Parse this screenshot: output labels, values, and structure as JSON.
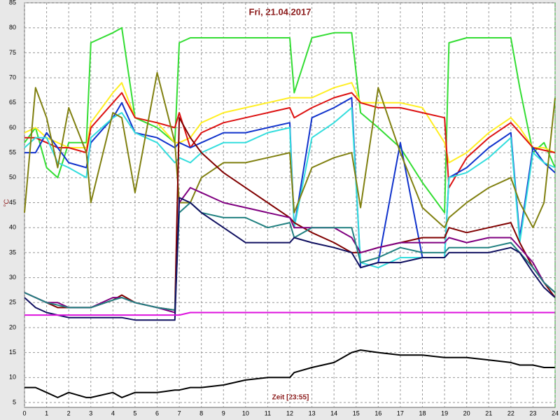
{
  "chart_data": {
    "type": "line",
    "title": "Fri, 21.04.2017",
    "x_label": "Zeit [23:55]",
    "y_label": "°C",
    "x": [
      0,
      0.5,
      1,
      1.5,
      2,
      2.8,
      3,
      4,
      4.4,
      5,
      6,
      6.8,
      7,
      7.5,
      8,
      9,
      10,
      11,
      12,
      12.2,
      13,
      14,
      14.8,
      15.2,
      16,
      17,
      18,
      19,
      19.2,
      20,
      21,
      22,
      22.4,
      23,
      23.5,
      24
    ],
    "series": [
      {
        "color": "#33dd33",
        "values": [
          57,
          60,
          52,
          50,
          57,
          57,
          77,
          79,
          80,
          62,
          60,
          57,
          77,
          78,
          78,
          78,
          78,
          78,
          78,
          67,
          78,
          79,
          79,
          63,
          60,
          56,
          49,
          43,
          77,
          78,
          78,
          78,
          68,
          55,
          57,
          52
        ]
      },
      {
        "color": "#ffee22",
        "values": [
          59,
          60,
          58,
          57,
          56,
          56,
          61,
          67,
          69,
          62,
          61,
          57,
          57,
          58,
          61,
          63,
          64,
          65,
          66,
          66,
          66,
          68,
          69,
          65,
          65,
          65,
          64,
          57,
          53,
          55,
          59,
          62,
          60,
          56,
          56,
          55
        ]
      },
      {
        "color": "#dd1111",
        "values": [
          58,
          58,
          57,
          56,
          56,
          55,
          60,
          65,
          67,
          62,
          61,
          60,
          63,
          56,
          59,
          61,
          62,
          63,
          64,
          62,
          64,
          66,
          67,
          65,
          64,
          64,
          63,
          62,
          48,
          54,
          58,
          61,
          59,
          56,
          55.5,
          55
        ]
      },
      {
        "color": "#1133cc",
        "values": [
          55,
          55,
          59,
          56,
          53,
          52,
          57,
          62,
          65,
          59,
          58,
          56,
          57,
          56,
          57,
          59,
          59,
          60,
          61,
          40,
          62,
          64,
          66,
          32,
          33,
          57,
          34,
          34,
          50,
          52,
          56,
          59,
          38,
          56,
          53,
          51
        ]
      },
      {
        "color": "#33dddd",
        "values": [
          56,
          58,
          58,
          53,
          52,
          50,
          58,
          62,
          63,
          59,
          57,
          53,
          54,
          53,
          55,
          57,
          57,
          59,
          60,
          40,
          58,
          61,
          64,
          33,
          32,
          34,
          34,
          34,
          50,
          51,
          54,
          58,
          37,
          55,
          53,
          52
        ]
      },
      {
        "color": "#808010",
        "values": [
          43,
          68,
          62,
          52,
          64,
          55,
          45,
          63,
          62,
          47,
          71,
          57,
          45,
          45,
          50,
          53,
          53,
          54,
          55,
          43,
          52,
          54,
          55,
          44,
          68,
          55,
          44,
          40,
          42,
          45,
          48,
          50,
          45,
          40,
          45,
          66
        ]
      },
      {
        "color": "#800000",
        "values": [
          27,
          26,
          25,
          24,
          24,
          24,
          24,
          25.5,
          26.5,
          25,
          24,
          23.5,
          62,
          58,
          55,
          51,
          48,
          45,
          42,
          41,
          39,
          37,
          35,
          35,
          36,
          37,
          38,
          38,
          40,
          39,
          40,
          41,
          37,
          32,
          29,
          26
        ]
      },
      {
        "color": "#800080",
        "values": [
          27,
          26,
          25,
          25,
          24,
          24,
          24,
          26,
          26,
          25,
          24,
          23,
          45,
          48,
          47,
          45,
          44,
          43,
          42,
          40,
          40,
          40,
          38,
          35,
          36,
          37,
          37,
          37,
          38,
          37,
          38,
          38,
          36,
          33,
          29,
          27
        ]
      },
      {
        "color": "#208080",
        "values": [
          27,
          26,
          25,
          24.5,
          24,
          24,
          24,
          25.5,
          26,
          25,
          24,
          23.5,
          43,
          45,
          43,
          42,
          42,
          40,
          41,
          38,
          40,
          40,
          40,
          33,
          34,
          36,
          35,
          35,
          36,
          36,
          36,
          37,
          35,
          32,
          29,
          27
        ]
      },
      {
        "color": "#101060",
        "values": [
          26,
          24,
          23,
          22.5,
          22,
          22,
          22,
          22,
          22,
          21.5,
          21.5,
          21.5,
          46,
          45,
          43,
          40,
          37,
          37,
          37,
          38,
          37,
          36,
          35,
          32,
          33,
          33,
          34,
          34,
          35,
          35,
          35,
          36,
          35,
          31,
          28,
          26
        ]
      },
      {
        "color": "#dd11dd",
        "values": [
          22.5,
          22.5,
          22.5,
          22.5,
          22.5,
          22.5,
          22.5,
          22.5,
          22.5,
          22.5,
          22.5,
          22.5,
          22.5,
          23,
          23,
          23,
          23,
          23,
          23,
          23,
          23,
          23,
          23,
          23,
          23,
          23,
          23,
          23,
          23,
          23,
          23,
          23,
          23,
          23,
          23,
          23
        ]
      },
      {
        "color": "#000000",
        "values": [
          8,
          8,
          7,
          6,
          7,
          6,
          6,
          7,
          6,
          7,
          7,
          7.5,
          7.5,
          8,
          8,
          8.5,
          9.5,
          10,
          10,
          11,
          12,
          13,
          15,
          15.5,
          15,
          14.5,
          14.5,
          14,
          14,
          14,
          13.5,
          13,
          12.5,
          12.5,
          12,
          12
        ]
      }
    ],
    "xlim": [
      0,
      24
    ],
    "ylim": [
      5,
      85
    ],
    "xticks": [
      0,
      1,
      2,
      3,
      4,
      5,
      6,
      7,
      8,
      9,
      10,
      11,
      12,
      13,
      14,
      15,
      16,
      17,
      18,
      19,
      20,
      21,
      22,
      23,
      24
    ],
    "yticks": [
      5,
      10,
      15,
      20,
      25,
      30,
      35,
      40,
      45,
      50,
      55,
      60,
      65,
      70,
      75,
      80,
      85
    ],
    "grid": true
  }
}
